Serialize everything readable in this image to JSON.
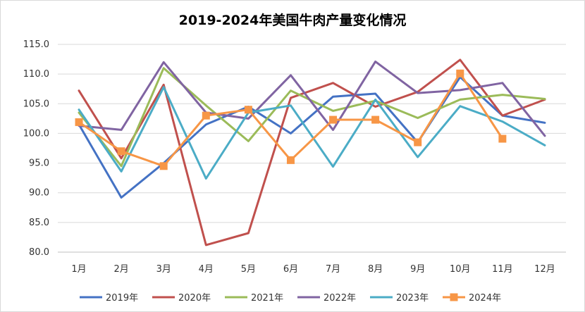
{
  "chart_data": {
    "type": "line",
    "title": "2019-2024年美国牛肉产量变化情况",
    "xlabel": "",
    "ylabel": "",
    "categories": [
      "1月",
      "2月",
      "3月",
      "4月",
      "5月",
      "6月",
      "7月",
      "8月",
      "9月",
      "10月",
      "11月",
      "12月"
    ],
    "ylim": [
      80.0,
      115.0
    ],
    "yticks": [
      "80.0",
      "85.0",
      "90.0",
      "95.0",
      "100.0",
      "105.0",
      "110.0",
      "115.0"
    ],
    "grid": true,
    "legend_position": "bottom",
    "series": [
      {
        "name": "2019年",
        "color": "#4472C4",
        "marker": "none",
        "values": [
          101.5,
          89.2,
          95.0,
          101.5,
          104.5,
          100.0,
          106.2,
          106.7,
          98.5,
          109.5,
          103.0,
          101.8
        ]
      },
      {
        "name": "2020年",
        "color": "#C0504D",
        "marker": "none",
        "values": [
          107.2,
          95.8,
          108.2,
          81.2,
          83.2,
          106.0,
          108.5,
          104.5,
          107.0,
          112.4,
          103.0,
          105.7
        ]
      },
      {
        "name": "2021年",
        "color": "#9BBB59",
        "marker": "none",
        "values": [
          103.5,
          94.5,
          111.0,
          104.7,
          98.7,
          107.2,
          103.8,
          105.5,
          102.6,
          105.7,
          106.5,
          105.8
        ]
      },
      {
        "name": "2022年",
        "color": "#8064A2",
        "marker": "none",
        "values": [
          101.3,
          100.6,
          112.0,
          103.5,
          102.5,
          109.8,
          100.6,
          112.1,
          106.8,
          107.3,
          108.5,
          99.6
        ]
      },
      {
        "name": "2023年",
        "color": "#4BACC6",
        "marker": "none",
        "values": [
          104.0,
          93.6,
          107.8,
          92.4,
          103.5,
          104.7,
          94.4,
          105.7,
          96.0,
          104.6,
          102.0,
          98.0
        ]
      },
      {
        "name": "2024年",
        "color": "#F79646",
        "marker": "square",
        "values": [
          101.9,
          97.0,
          94.5,
          103.0,
          104.0,
          95.5,
          102.3,
          102.3,
          98.5,
          110.1,
          99.1,
          null
        ]
      }
    ]
  }
}
